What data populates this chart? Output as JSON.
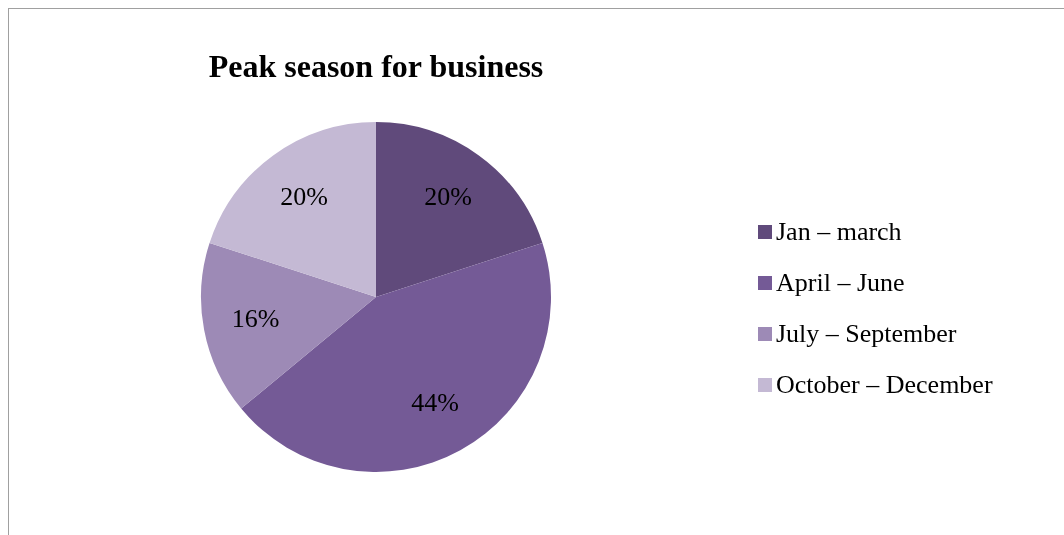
{
  "chart_data": {
    "type": "pie",
    "title": "Peak season for business",
    "categories": [
      "Jan – march",
      "April – June",
      "July – September",
      "October – December"
    ],
    "values": [
      20,
      44,
      16,
      20
    ],
    "value_labels": [
      "20%",
      "44%",
      "16%",
      "20%"
    ],
    "colors": [
      "#604a7b",
      "#745a96",
      "#9d8ab6",
      "#c4b9d4"
    ],
    "legend": "right"
  }
}
